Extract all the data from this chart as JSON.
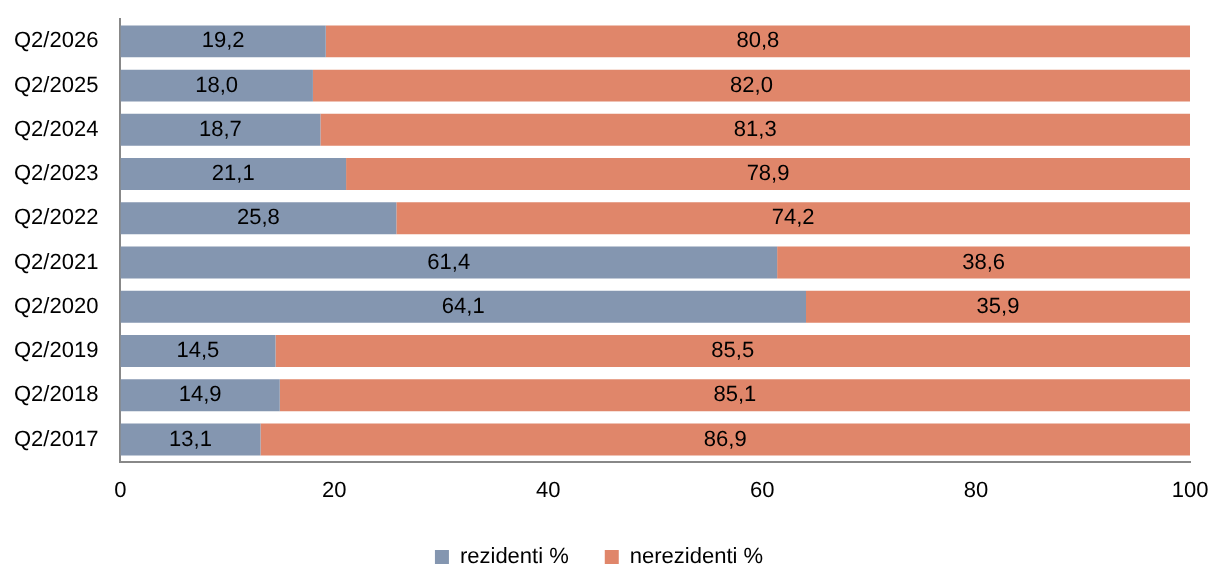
{
  "chart_data": {
    "type": "bar",
    "orientation": "horizontal",
    "stacked": true,
    "categories": [
      "Q2/2026",
      "Q2/2025",
      "Q2/2024",
      "Q2/2023",
      "Q2/2022",
      "Q2/2021",
      "Q2/2020",
      "Q2/2019",
      "Q2/2018",
      "Q2/2017"
    ],
    "series": [
      {
        "name": "rezidenti %",
        "color": "#8496b0",
        "values": [
          19.2,
          18.0,
          18.7,
          21.1,
          25.8,
          61.4,
          64.1,
          14.5,
          14.9,
          13.1
        ],
        "value_labels": [
          "19,2",
          "18,0",
          "18,7",
          "21,1",
          "25,8",
          "61,4",
          "64,1",
          "14,5",
          "14,9",
          "13,1"
        ]
      },
      {
        "name": "nerezidenti %",
        "color": "#e0866a",
        "values": [
          80.8,
          82.0,
          81.3,
          78.9,
          74.2,
          38.6,
          35.9,
          85.5,
          85.1,
          86.9
        ],
        "value_labels": [
          "80,8",
          "82,0",
          "81,3",
          "78,9",
          "74,2",
          "38,6",
          "35,9",
          "85,5",
          "85,1",
          "86,9"
        ]
      }
    ],
    "xlim": [
      0,
      100
    ],
    "xticks": [
      0,
      20,
      40,
      60,
      80,
      100
    ],
    "grid": false,
    "legend": "bottom"
  }
}
